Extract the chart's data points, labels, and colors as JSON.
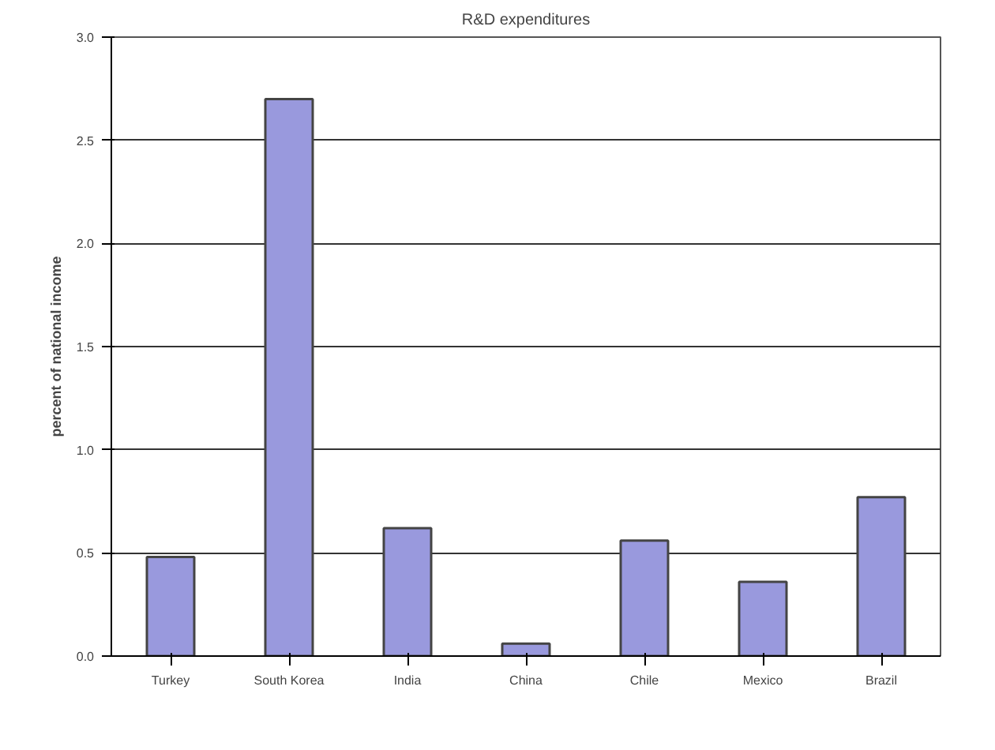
{
  "chart_data": {
    "type": "bar",
    "title": "R&D expenditures",
    "ylabel": "percent of national income",
    "categories": [
      "Turkey",
      "South Korea",
      "India",
      "China",
      "Chile",
      "Mexico",
      "Brazil"
    ],
    "values": [
      0.48,
      2.7,
      0.62,
      0.06,
      0.56,
      0.36,
      0.77
    ],
    "color": "#9999dd",
    "ylim": [
      0,
      3
    ],
    "yticks": [
      {
        "value": 0,
        "label": "0.0"
      },
      {
        "value": 0.5,
        "label": "0.5"
      },
      {
        "value": 1,
        "label": "1.0"
      },
      {
        "value": 1.5,
        "label": "1.5"
      },
      {
        "value": 2,
        "label": "2.0"
      },
      {
        "value": 2.5,
        "label": "2.5"
      },
      {
        "value": 3,
        "label": "3.0"
      }
    ],
    "grid": "y"
  }
}
